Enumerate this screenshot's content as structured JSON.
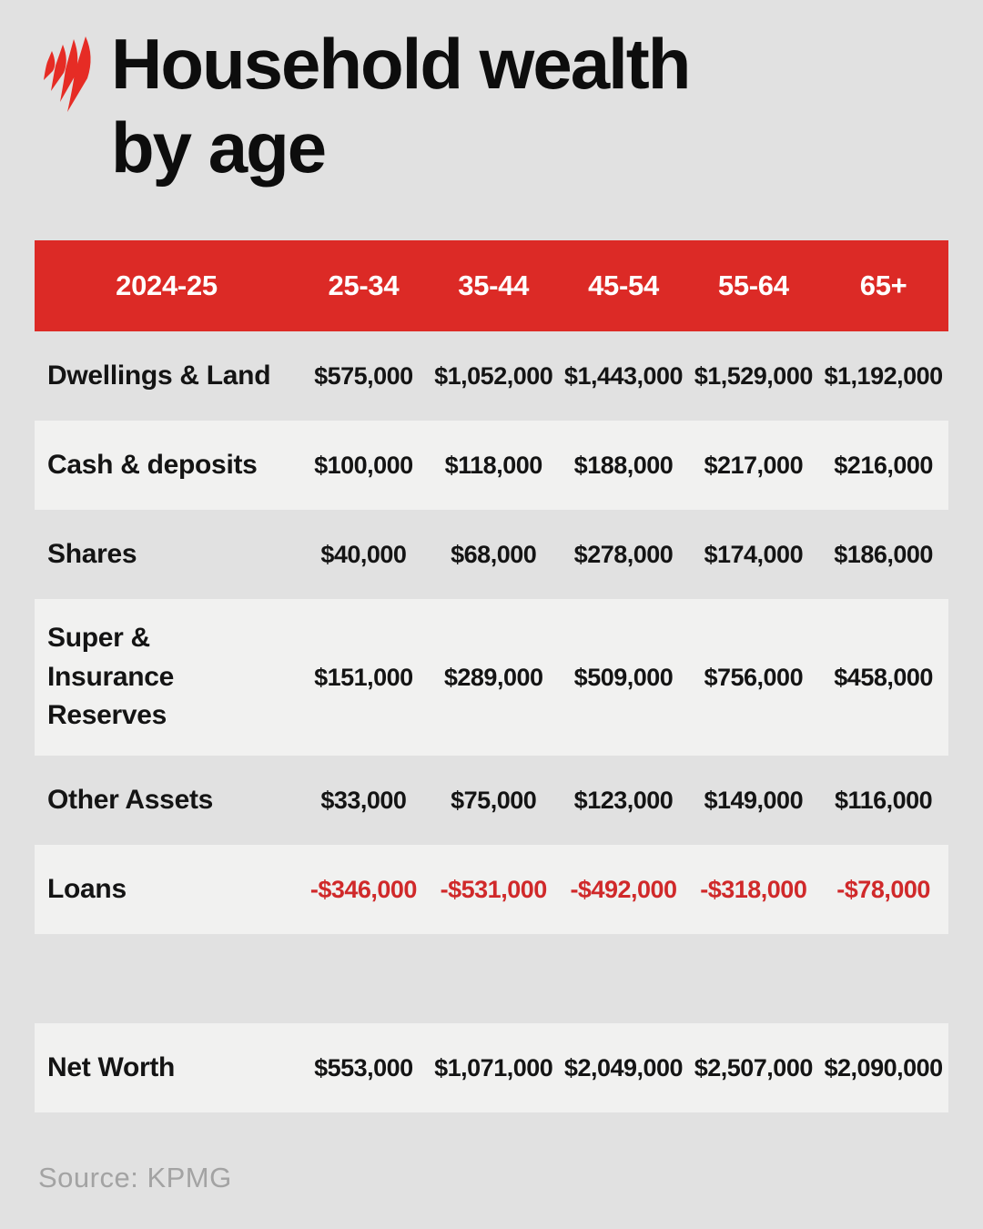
{
  "title": {
    "line1": "Household wealth",
    "line2": "by age"
  },
  "brand": {
    "logo": "sbs-mercury-flame"
  },
  "colors": {
    "background": "#e1e1e1",
    "accent_red": "#dc2a26",
    "logo_red": "#e62c25",
    "negative_red": "#d0292a",
    "row_shaded": "#f1f1f0",
    "header_text": "#ffffff",
    "body_text": "#141414",
    "source_text": "#a3a3a3"
  },
  "table": {
    "header": {
      "columns": [
        "2024-25",
        "25-34",
        "35-44",
        "45-54",
        "55-64",
        "65+"
      ]
    },
    "sections": [
      {
        "rows": [
          {
            "label": "Dwellings & Land",
            "values": [
              "$575,000",
              "$1,052,000",
              "$1,443,000",
              "$1,529,000",
              "$1,192,000"
            ],
            "shaded": false,
            "negative": false
          },
          {
            "label": "Cash & deposits",
            "values": [
              "$100,000",
              "$118,000",
              "$188,000",
              "$217,000",
              "$216,000"
            ],
            "shaded": true,
            "negative": false
          },
          {
            "label": "Shares",
            "values": [
              "$40,000",
              "$68,000",
              "$278,000",
              "$174,000",
              "$186,000"
            ],
            "shaded": false,
            "negative": false
          },
          {
            "label": "Super &\nInsurance\nReserves",
            "values": [
              "$151,000",
              "$289,000",
              "$509,000",
              "$756,000",
              "$458,000"
            ],
            "shaded": true,
            "negative": false
          },
          {
            "label": "Other Assets",
            "values": [
              "$33,000",
              "$75,000",
              "$123,000",
              "$149,000",
              "$116,000"
            ],
            "shaded": false,
            "negative": false
          },
          {
            "label": "Loans",
            "values": [
              "-$346,000",
              "-$531,000",
              "-$492,000",
              "-$318,000",
              "-$78,000"
            ],
            "shaded": true,
            "negative": true
          }
        ]
      },
      {
        "rows": [
          {
            "label": "Net Worth",
            "values": [
              "$553,000",
              "$1,071,000",
              "$2,049,000",
              "$2,507,000",
              "$2,090,000"
            ],
            "shaded": true,
            "negative": false
          }
        ]
      }
    ]
  },
  "source": "Source: KPMG",
  "chart_data": {
    "type": "table",
    "title": "Household wealth by age",
    "period": "2024-25",
    "categories": [
      "25-34",
      "35-44",
      "45-54",
      "55-64",
      "65+"
    ],
    "series": [
      {
        "name": "Dwellings & Land",
        "values": [
          575000,
          1052000,
          1443000,
          1529000,
          1192000
        ]
      },
      {
        "name": "Cash & deposits",
        "values": [
          100000,
          118000,
          188000,
          217000,
          216000
        ]
      },
      {
        "name": "Shares",
        "values": [
          40000,
          68000,
          278000,
          174000,
          186000
        ]
      },
      {
        "name": "Super & Insurance Reserves",
        "values": [
          151000,
          289000,
          509000,
          756000,
          458000
        ]
      },
      {
        "name": "Other Assets",
        "values": [
          33000,
          75000,
          123000,
          149000,
          116000
        ]
      },
      {
        "name": "Loans",
        "values": [
          -346000,
          -531000,
          -492000,
          -318000,
          -78000
        ]
      },
      {
        "name": "Net Worth",
        "values": [
          553000,
          1071000,
          2049000,
          2507000,
          2090000
        ]
      }
    ],
    "source": "KPMG"
  }
}
